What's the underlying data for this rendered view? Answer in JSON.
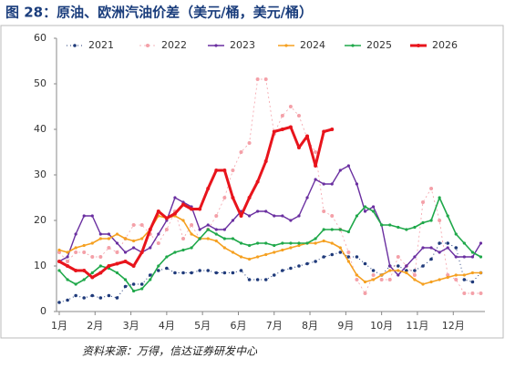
{
  "chart_data": {
    "type": "line",
    "title": "图 28：原油、欧洲汽油价差（美元/桶，美元/桶）",
    "source": "资料来源：万得，信达证券研发中心",
    "x": [
      0,
      1,
      2,
      3,
      4,
      5,
      6,
      7,
      8,
      9,
      10,
      11,
      12,
      13,
      14,
      15,
      16,
      17,
      18,
      19,
      20,
      21,
      22,
      23,
      24,
      25,
      26,
      27,
      28,
      29,
      30,
      31,
      32,
      33,
      34,
      35,
      36,
      37,
      38,
      39,
      40,
      41,
      42,
      43,
      44,
      45,
      46,
      47,
      48,
      49,
      50,
      51
    ],
    "xlim": [
      0,
      51.5
    ],
    "xticks": [
      {
        "value": 0,
        "label": "1月"
      },
      {
        "value": 4.33,
        "label": "2月"
      },
      {
        "value": 8.67,
        "label": "3月"
      },
      {
        "value": 13,
        "label": "4月"
      },
      {
        "value": 17.33,
        "label": "5月"
      },
      {
        "value": 21.67,
        "label": "6月"
      },
      {
        "value": 26,
        "label": "7月"
      },
      {
        "value": 30.33,
        "label": "8月"
      },
      {
        "value": 34.67,
        "label": "9月"
      },
      {
        "value": 39,
        "label": "10月"
      },
      {
        "value": 43.33,
        "label": "11月"
      },
      {
        "value": 47.67,
        "label": "12月"
      }
    ],
    "ylim": [
      0,
      60
    ],
    "yticks": [
      0,
      10,
      20,
      30,
      40,
      50,
      60
    ],
    "series": [
      {
        "name": "2021",
        "color": "#1f3a7a",
        "values": [
          2,
          2.5,
          3.5,
          3,
          3.5,
          3,
          3.5,
          3,
          5.5,
          6,
          6,
          8,
          9,
          9.5,
          8.5,
          8.5,
          8.5,
          9,
          9,
          8.5,
          8.5,
          8.5,
          9,
          7,
          7,
          7,
          8,
          9,
          9.5,
          10,
          10.5,
          11,
          12,
          12.5,
          13,
          12,
          12,
          10.5,
          9,
          8,
          10,
          10,
          9,
          9,
          10,
          11.5,
          15,
          15,
          14,
          7,
          6.5,
          8.5
        ]
      },
      {
        "name": "2022",
        "color": "#f4a0a8",
        "values": [
          13,
          11,
          13,
          13,
          12,
          12,
          14,
          13,
          16,
          19,
          19,
          17,
          15,
          18,
          22,
          16,
          19,
          16,
          18,
          21,
          25,
          31,
          35,
          37,
          51,
          51,
          39,
          43,
          45,
          43,
          38,
          35,
          22,
          21,
          18,
          13,
          7,
          4,
          8,
          7,
          7,
          12,
          10,
          8,
          24,
          27,
          20,
          8,
          7,
          4,
          4,
          4
        ]
      },
      {
        "name": "2023",
        "color": "#6a2fa0",
        "values": [
          11,
          12,
          17,
          21,
          21,
          17,
          17,
          15,
          13,
          14,
          13,
          14,
          17,
          20,
          25,
          24,
          23,
          18,
          19,
          18,
          18,
          20,
          22,
          21,
          22,
          22,
          21,
          21,
          20,
          21,
          25,
          29,
          28,
          28,
          31,
          32,
          28,
          22,
          23,
          19,
          10,
          8,
          10,
          12,
          14,
          14,
          13,
          14,
          12,
          12,
          12,
          15
        ]
      },
      {
        "name": "2024",
        "color": "#f5a020",
        "values": [
          13.5,
          13,
          14,
          14.5,
          15,
          16,
          16,
          17,
          16,
          15.5,
          16,
          18,
          21,
          20.5,
          21,
          20,
          17,
          16,
          16,
          15.5,
          14,
          13,
          12,
          11.5,
          12,
          12.5,
          13,
          13.5,
          14,
          14.5,
          15,
          15,
          15.5,
          15,
          14,
          11,
          8,
          6.5,
          7,
          8,
          9,
          9,
          8.5,
          7,
          6,
          6.5,
          7,
          7.5,
          8,
          8,
          8.5,
          8.5
        ]
      },
      {
        "name": "2025",
        "color": "#1fa84a",
        "values": [
          9,
          7,
          6,
          7,
          8.5,
          10,
          9.5,
          8.5,
          7,
          4.5,
          5,
          7,
          10,
          12,
          13,
          13.5,
          14,
          16,
          18,
          17,
          16,
          16,
          15,
          14.5,
          15,
          15,
          14.5,
          15,
          15,
          15,
          15,
          16,
          18,
          18,
          18,
          17.5,
          21,
          23,
          22,
          19,
          19,
          18.5,
          18,
          18.5,
          19.5,
          20,
          25,
          21,
          17,
          15,
          13,
          12
        ]
      },
      {
        "name": "2026",
        "color": "#e8141c",
        "values": [
          11,
          10,
          9,
          9,
          7.5,
          8.5,
          10,
          10.5,
          11,
          10,
          13,
          18,
          22,
          20.5,
          21.5,
          23.5,
          22.5,
          22.5,
          27,
          31,
          31,
          25,
          21,
          25,
          28.5,
          33,
          39.5,
          40,
          40.5,
          36,
          38.5,
          32,
          39.5,
          40,
          null,
          null,
          null,
          null,
          null,
          null,
          null,
          null,
          null,
          null,
          null,
          null,
          null,
          null,
          null,
          null,
          null,
          null
        ]
      }
    ]
  }
}
